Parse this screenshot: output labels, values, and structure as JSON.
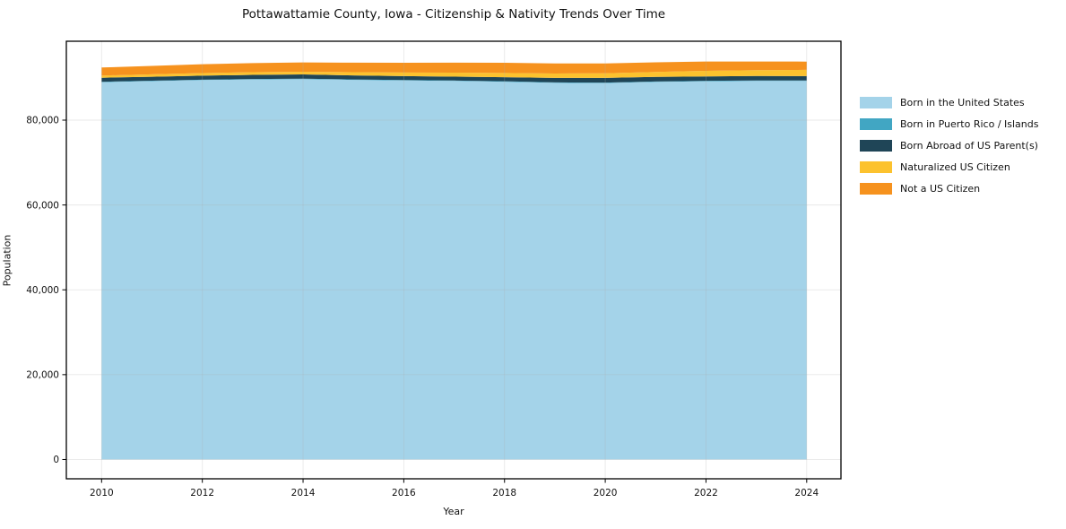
{
  "figure": {
    "title": "Pottawattamie County, Iowa - Citizenship & Nativity Trends Over Time",
    "xlabel": "Year",
    "ylabel": "Population",
    "background_color": "#ffffff",
    "spine_color": "#000000",
    "grid_color": "#aeaeae"
  },
  "chart_data": {
    "type": "area",
    "stacked": true,
    "title": "Pottawattamie County, Iowa - Citizenship & Nativity Trends Over Time",
    "xlabel": "Year",
    "ylabel": "Population",
    "x": [
      2010,
      2011,
      2012,
      2013,
      2014,
      2015,
      2016,
      2017,
      2018,
      2019,
      2020,
      2021,
      2022,
      2023,
      2024
    ],
    "series": [
      {
        "name": "Born in the United States",
        "color": "#A4D3E9",
        "values": [
          88950,
          89200,
          89450,
          89600,
          89650,
          89500,
          89350,
          89250,
          89050,
          88800,
          88750,
          89000,
          89150,
          89250,
          89250
        ]
      },
      {
        "name": "Born in Puerto Rico / Islands",
        "color": "#41A6C3",
        "values": [
          100,
          110,
          90,
          100,
          120,
          100,
          110,
          100,
          120,
          100,
          110,
          100,
          120,
          100,
          100
        ]
      },
      {
        "name": "Born Abroad of US Parent(s)",
        "color": "#1F4557",
        "values": [
          950,
          930,
          950,
          980,
          1000,
          950,
          920,
          900,
          950,
          1050,
          1100,
          1080,
          1050,
          1050,
          1020
        ]
      },
      {
        "name": "Naturalized US Citizen",
        "color": "#FCC22E",
        "values": [
          500,
          550,
          600,
          620,
          650,
          750,
          850,
          950,
          1000,
          1050,
          1100,
          1200,
          1300,
          1380,
          1480
        ]
      },
      {
        "name": "Not a US Citizen",
        "color": "#F6921E",
        "values": [
          1900,
          2000,
          2100,
          2150,
          2200,
          2250,
          2300,
          2350,
          2400,
          2350,
          2300,
          2250,
          2200,
          2050,
          1950
        ]
      }
    ],
    "xlim": [
      2009.3,
      2024.68
    ],
    "ylim": [
      -4550,
      98600
    ],
    "xticks": [
      2010,
      2012,
      2014,
      2016,
      2018,
      2020,
      2022,
      2024
    ],
    "xtick_labels": [
      "2010",
      "2012",
      "2014",
      "2016",
      "2018",
      "2020",
      "2022",
      "2024"
    ],
    "yticks": [
      0,
      20000,
      40000,
      60000,
      80000
    ],
    "ytick_labels": [
      "0",
      "20,000",
      "40,000",
      "60,000",
      "80,000"
    ],
    "grid": true,
    "legend_position": "right"
  }
}
